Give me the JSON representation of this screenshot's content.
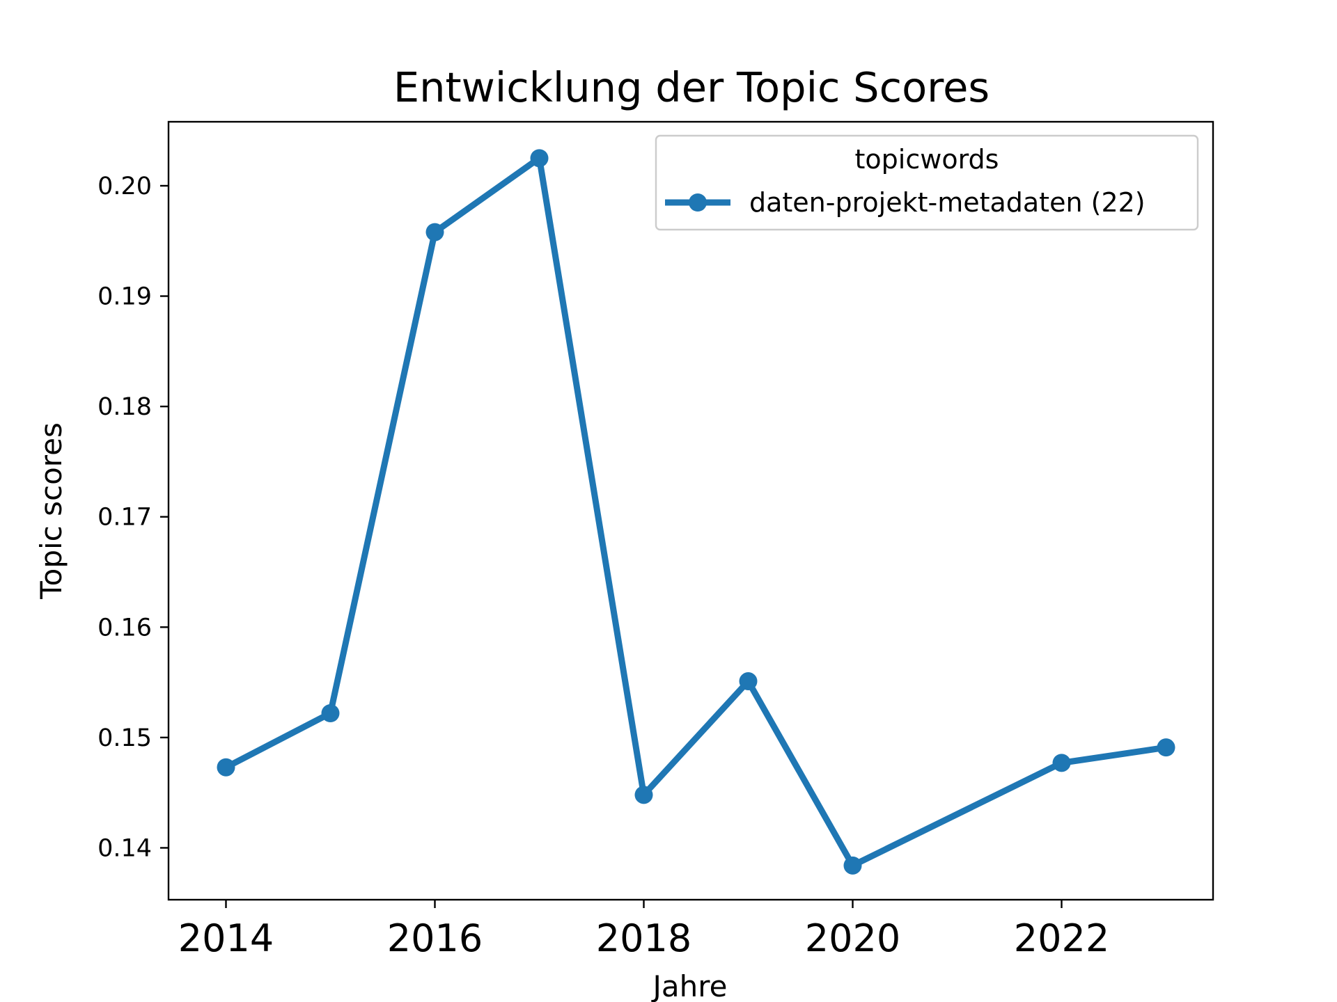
{
  "chart_data": {
    "type": "line",
    "title": "Entwicklung der Topic Scores",
    "xlabel": "Jahre",
    "ylabel": "Topic scores",
    "xlim": [
      2013.45,
      2023.45
    ],
    "ylim": [
      0.1353,
      0.2058
    ],
    "x_ticks": [
      2014,
      2016,
      2018,
      2020,
      2022
    ],
    "x_tick_labels": [
      "2014",
      "2016",
      "2018",
      "2020",
      "2022"
    ],
    "y_ticks": [
      0.14,
      0.15,
      0.16,
      0.17,
      0.18,
      0.19,
      0.2
    ],
    "y_tick_labels": [
      "0.14",
      "0.15",
      "0.16",
      "0.17",
      "0.18",
      "0.19",
      "0.20"
    ],
    "grid": false,
    "legend": {
      "title": "topicwords",
      "placement": "upper right"
    },
    "series": [
      {
        "name": "daten-projekt-metadaten (22)",
        "color": "#1f77b4",
        "marker": "circle",
        "x": [
          2014,
          2015,
          2016,
          2017,
          2018,
          2019,
          2020,
          2022,
          2023
        ],
        "y": [
          0.1473,
          0.1522,
          0.1958,
          0.2025,
          0.1448,
          0.1551,
          0.1384,
          0.1477,
          0.1491
        ]
      }
    ]
  }
}
